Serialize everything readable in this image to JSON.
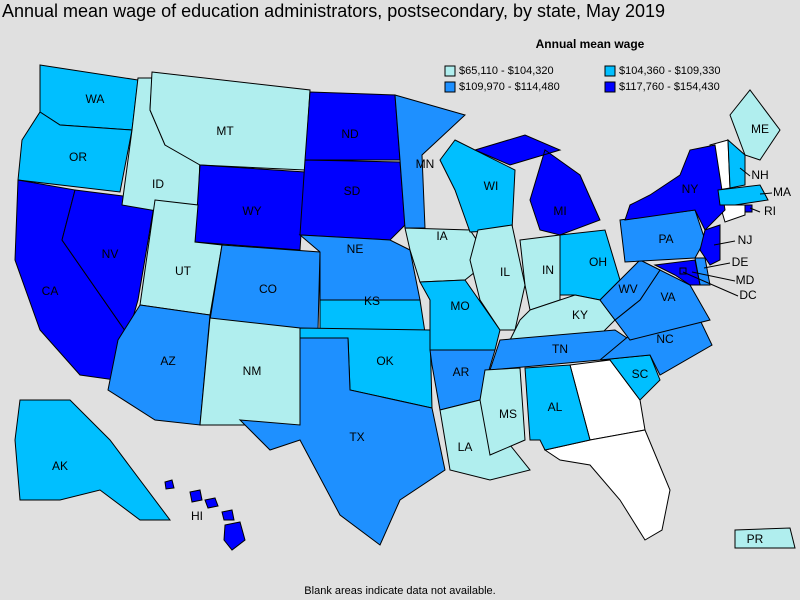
{
  "title": "Annual mean wage of education administrators, postsecondary, by state, May 2019",
  "legend": {
    "title": "Annual mean wage",
    "bins": [
      {
        "label": "$65,110 - $104,320",
        "color": "#b0eeee"
      },
      {
        "label": "$104,360 - $109,330",
        "color": "#00bfff"
      },
      {
        "label": "$109,970 - $114,480",
        "color": "#1e90ff"
      },
      {
        "label": "$117,760 - $154,430",
        "color": "#0000ff"
      }
    ]
  },
  "states": [
    {
      "label": "WA",
      "bin": 1
    },
    {
      "label": "OR",
      "bin": 1
    },
    {
      "label": "CA",
      "bin": 3
    },
    {
      "label": "NV",
      "bin": 3
    },
    {
      "label": "ID",
      "bin": 0
    },
    {
      "label": "MT",
      "bin": 0
    },
    {
      "label": "WY",
      "bin": 3
    },
    {
      "label": "UT",
      "bin": 0
    },
    {
      "label": "CO",
      "bin": 2
    },
    {
      "label": "AZ",
      "bin": 2
    },
    {
      "label": "NM",
      "bin": 0
    },
    {
      "label": "ND",
      "bin": 3
    },
    {
      "label": "SD",
      "bin": 3
    },
    {
      "label": "NE",
      "bin": 2
    },
    {
      "label": "KS",
      "bin": 1
    },
    {
      "label": "OK",
      "bin": 1
    },
    {
      "label": "TX",
      "bin": 2
    },
    {
      "label": "MN",
      "bin": 2
    },
    {
      "label": "IA",
      "bin": 0
    },
    {
      "label": "MO",
      "bin": 1
    },
    {
      "label": "AR",
      "bin": 2
    },
    {
      "label": "LA",
      "bin": 0
    },
    {
      "label": "WI",
      "bin": 1
    },
    {
      "label": "IL",
      "bin": 0
    },
    {
      "label": "MI",
      "bin": 3
    },
    {
      "label": "IN",
      "bin": 0
    },
    {
      "label": "OH",
      "bin": 1
    },
    {
      "label": "KY",
      "bin": 0
    },
    {
      "label": "TN",
      "bin": 2
    },
    {
      "label": "MS",
      "bin": 0
    },
    {
      "label": "AL",
      "bin": 1
    },
    {
      "label": "SC",
      "bin": 1
    },
    {
      "label": "NC",
      "bin": 2
    },
    {
      "label": "VA",
      "bin": 2
    },
    {
      "label": "WV",
      "bin": 2
    },
    {
      "label": "PA",
      "bin": 2
    },
    {
      "label": "NY",
      "bin": 3
    },
    {
      "label": "NJ",
      "bin": 3
    },
    {
      "label": "DE",
      "bin": 2
    },
    {
      "label": "MD",
      "bin": 3
    },
    {
      "label": "DC",
      "bin": 3
    },
    {
      "label": "ME",
      "bin": 0
    },
    {
      "label": "NH",
      "bin": 1
    },
    {
      "label": "MA",
      "bin": 1
    },
    {
      "label": "RI",
      "bin": 3
    },
    {
      "label": "AK",
      "bin": 1
    },
    {
      "label": "HI",
      "bin": 3
    },
    {
      "label": "PR",
      "bin": 0
    }
  ],
  "note": "Blank areas indicate data not available."
}
